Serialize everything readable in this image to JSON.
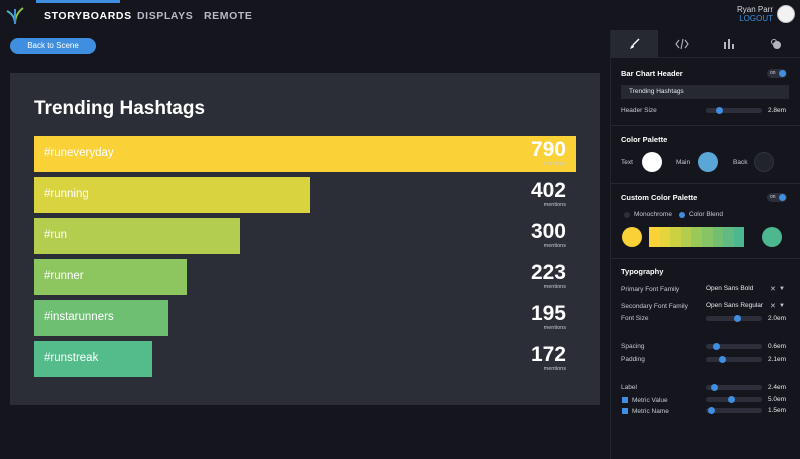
{
  "nav": {
    "tabs": [
      "STORYBOARDS",
      "DISPLAYS",
      "REMOTE"
    ],
    "active_tab": "STORYBOARDS",
    "user_name": "Ryan Parr",
    "logout_label": "LOGOUT"
  },
  "back_button_label": "Back to Scene",
  "scene": {
    "title": "Trending Hashtags",
    "unit": "mentions",
    "items": [
      {
        "label": "#runeveryday",
        "value": "790",
        "color": "#fbd138"
      },
      {
        "label": "#running",
        "value": "402",
        "color": "#d8d33f"
      },
      {
        "label": "#run",
        "value": "300",
        "color": "#b3cd4f"
      },
      {
        "label": "#runner",
        "value": "223",
        "color": "#8dc65f"
      },
      {
        "label": "#instarunners",
        "value": "195",
        "color": "#6fbf73"
      },
      {
        "label": "#runstreak",
        "value": "172",
        "color": "#54bb8b"
      }
    ]
  },
  "panel": {
    "tab_icons": [
      "brush-icon",
      "code-icon",
      "bar-chart-icon",
      "fill-icon"
    ],
    "header_section": {
      "title": "Bar Chart Header",
      "toggle_label": "on",
      "header_text": "Trending Hashtags",
      "header_size_label": "Header Size",
      "header_size_value": "2.8em"
    },
    "palette_section": {
      "title": "Color Palette",
      "text_label": "Text",
      "main_label": "Main",
      "back_label": "Back",
      "text_color": "#ffffff",
      "main_color": "#5aa6d6",
      "back_color": "#22242c"
    },
    "custom_palette_section": {
      "title": "Custom Color Palette",
      "toggle_label": "on",
      "monochrome_label": "Monochrome",
      "blend_label": "Color Blend",
      "start_color": "#fbd138",
      "end_color": "#4db890",
      "gradient_colors": [
        "#fbd138",
        "#e6d43c",
        "#ccd143",
        "#b3cd4f",
        "#9ac95a",
        "#86c465",
        "#72bf72",
        "#5fbb82",
        "#4db890"
      ]
    },
    "typography_section": {
      "title": "Typography",
      "primary_font_label": "Primary Font Family",
      "primary_font_value": "Open Sans Bold",
      "secondary_font_label": "Secondary Font Family",
      "secondary_font_value": "Open Sans Regular",
      "font_size_label": "Font Size",
      "font_size_value": "2.0em",
      "spacing_label": "Spacing",
      "spacing_value": "0.6em",
      "padding_label": "Padding",
      "padding_value": "2.1em",
      "label_label": "Label",
      "label_value": "2.4em",
      "metric_value_label": "Metric Value",
      "metric_value_value": "5.0em",
      "metric_name_label": "Metric Name",
      "metric_name_value": "1.5em"
    }
  }
}
